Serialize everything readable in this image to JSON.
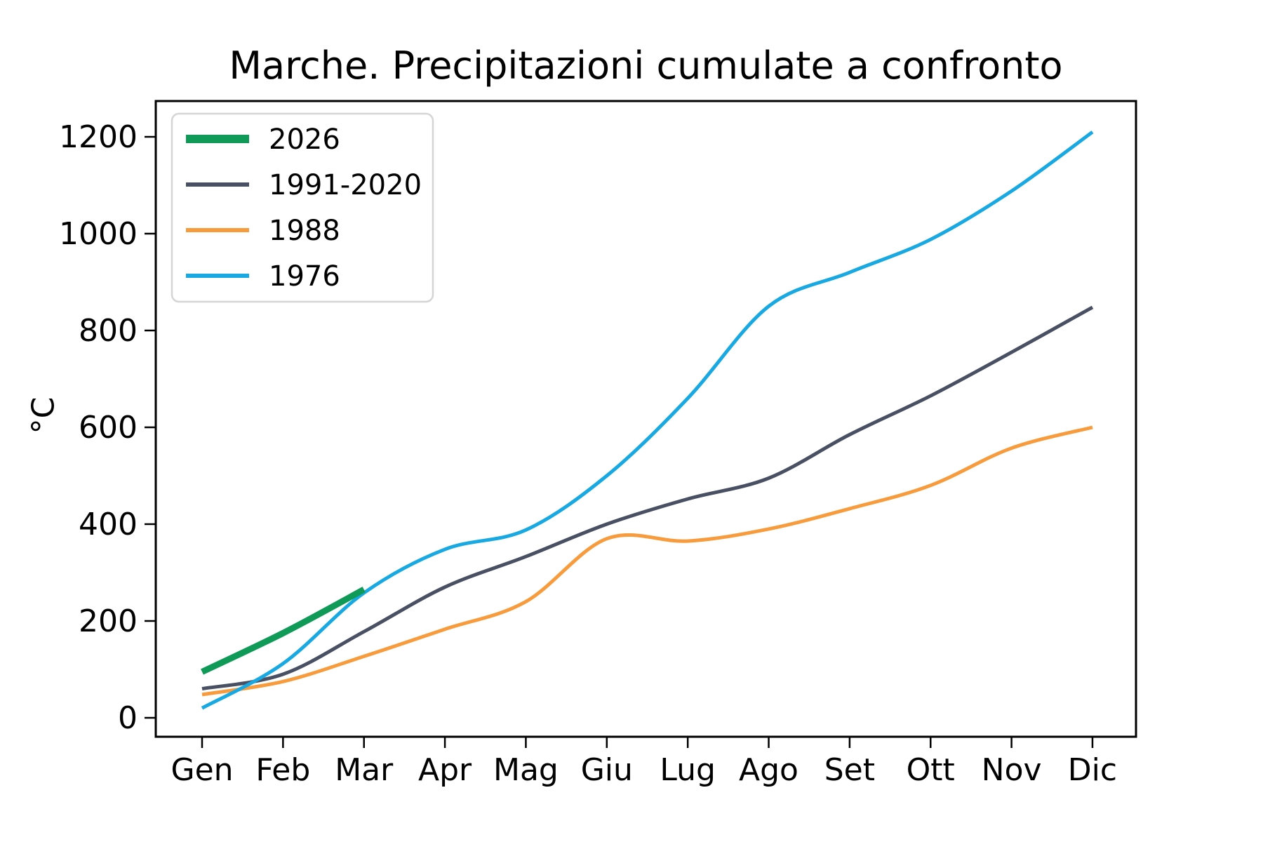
{
  "title": "Marche. Precipitazioni cumulate a confronto",
  "y_axis": {
    "label": "°C",
    "ticks": [
      0,
      200,
      400,
      600,
      800,
      1000,
      1200
    ]
  },
  "x_axis": {
    "ticks": [
      "Gen",
      "Feb",
      "Mar",
      "Apr",
      "Mag",
      "Giu",
      "Lug",
      "Ago",
      "Set",
      "Ott",
      "Nov",
      "Dic"
    ]
  },
  "legend": {
    "position": "upper left",
    "items": [
      "2026",
      "1991-2020",
      "1988",
      "1976"
    ]
  },
  "colors": {
    "series_2026": "#0f9b57",
    "series_1991_2020": "#495063",
    "series_1988": "#f89b3c",
    "series_1976": "#18a9e3",
    "axis": "#000000",
    "legend_border": "#d5d5d5"
  },
  "chart_data": {
    "type": "line",
    "title": "Marche. Precipitazioni cumulate a confronto",
    "xlabel": "",
    "ylabel": "°C",
    "categories": [
      "Gen",
      "Feb",
      "Mar",
      "Apr",
      "Mag",
      "Giu",
      "Lug",
      "Ago",
      "Set",
      "Ott",
      "Nov",
      "Dic"
    ],
    "series": [
      {
        "name": "2026",
        "color": "#0f9b57",
        "line_width": 9,
        "values": [
          95,
          175,
          265
        ]
      },
      {
        "name": "1991-2020",
        "color": "#495063",
        "line_width": 5,
        "values": [
          60,
          90,
          178,
          270,
          333,
          400,
          452,
          495,
          585,
          665,
          755,
          848
        ]
      },
      {
        "name": "1988",
        "color": "#f89b3c",
        "line_width": 5,
        "values": [
          48,
          75,
          127,
          183,
          240,
          370,
          365,
          390,
          432,
          480,
          557,
          600
        ]
      },
      {
        "name": "1976",
        "color": "#18a9e3",
        "line_width": 5,
        "values": [
          20,
          112,
          258,
          348,
          388,
          500,
          660,
          850,
          920,
          988,
          1088,
          1210
        ]
      }
    ],
    "ylim": [
      -40,
      1275
    ],
    "yticks": [
      0,
      200,
      400,
      600,
      800,
      1000,
      1200
    ],
    "grid": false,
    "legend_position": "upper left"
  }
}
